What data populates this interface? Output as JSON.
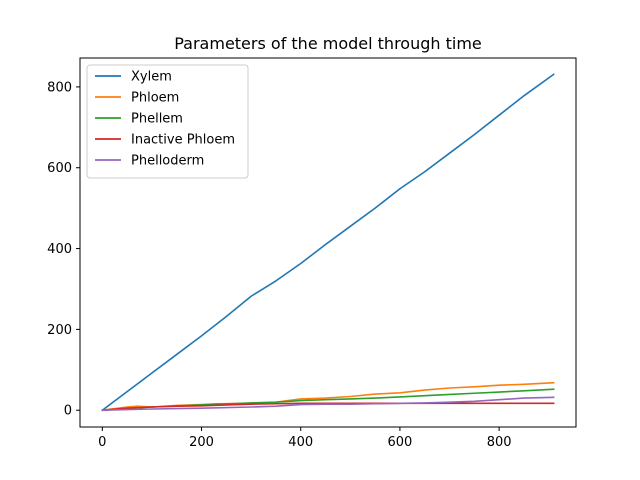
{
  "chart_data": {
    "type": "line",
    "title": "Parameters of the model through time",
    "xlabel": "",
    "ylabel": "",
    "xlim": [
      -45,
      955
    ],
    "ylim": [
      -41.5,
      871.5
    ],
    "xticks": [
      0,
      200,
      400,
      600,
      800
    ],
    "yticks": [
      0,
      200,
      400,
      600,
      800
    ],
    "grid": false,
    "legend_position": "top-left",
    "series": [
      {
        "name": "Xylem",
        "color": "#1f77b4",
        "x": [
          0,
          50,
          100,
          150,
          200,
          250,
          300,
          350,
          400,
          450,
          500,
          550,
          600,
          650,
          700,
          750,
          800,
          850,
          910
        ],
        "y": [
          0,
          46,
          92,
          138,
          184,
          232,
          282,
          320,
          363,
          410,
          455,
          500,
          548,
          590,
          636,
          682,
          730,
          778,
          831
        ]
      },
      {
        "name": "Phloem",
        "color": "#ff7f0e",
        "x": [
          0,
          50,
          70,
          100,
          150,
          200,
          230,
          300,
          350,
          400,
          450,
          500,
          550,
          600,
          650,
          700,
          750,
          800,
          850,
          910
        ],
        "y": [
          0,
          8,
          10,
          8,
          12,
          14,
          16,
          17,
          20,
          28,
          30,
          34,
          40,
          43,
          50,
          55,
          58,
          62,
          64,
          68
        ]
      },
      {
        "name": "Phellem",
        "color": "#2ca02c",
        "x": [
          0,
          100,
          200,
          300,
          350,
          400,
          450,
          500,
          550,
          600,
          650,
          700,
          750,
          800,
          850,
          910
        ],
        "y": [
          0,
          8,
          13,
          18,
          20,
          24,
          26,
          28,
          30,
          33,
          36,
          39,
          42,
          45,
          48,
          52
        ]
      },
      {
        "name": "Inactive Phloem",
        "color": "#d62728",
        "x": [
          0,
          50,
          100,
          150,
          200,
          250,
          300,
          350,
          400,
          450,
          500,
          600,
          700,
          800,
          910
        ],
        "y": [
          0,
          5,
          8,
          10,
          11,
          13,
          15,
          16,
          17,
          17,
          17,
          17,
          17,
          17,
          17
        ]
      },
      {
        "name": "Phelloderm",
        "color": "#9467bd",
        "x": [
          0,
          100,
          200,
          300,
          350,
          400,
          450,
          500,
          550,
          600,
          650,
          700,
          750,
          800,
          850,
          910
        ],
        "y": [
          0,
          3,
          5,
          8,
          10,
          14,
          15,
          15,
          16,
          17,
          18,
          20,
          22,
          26,
          30,
          32
        ]
      }
    ]
  }
}
